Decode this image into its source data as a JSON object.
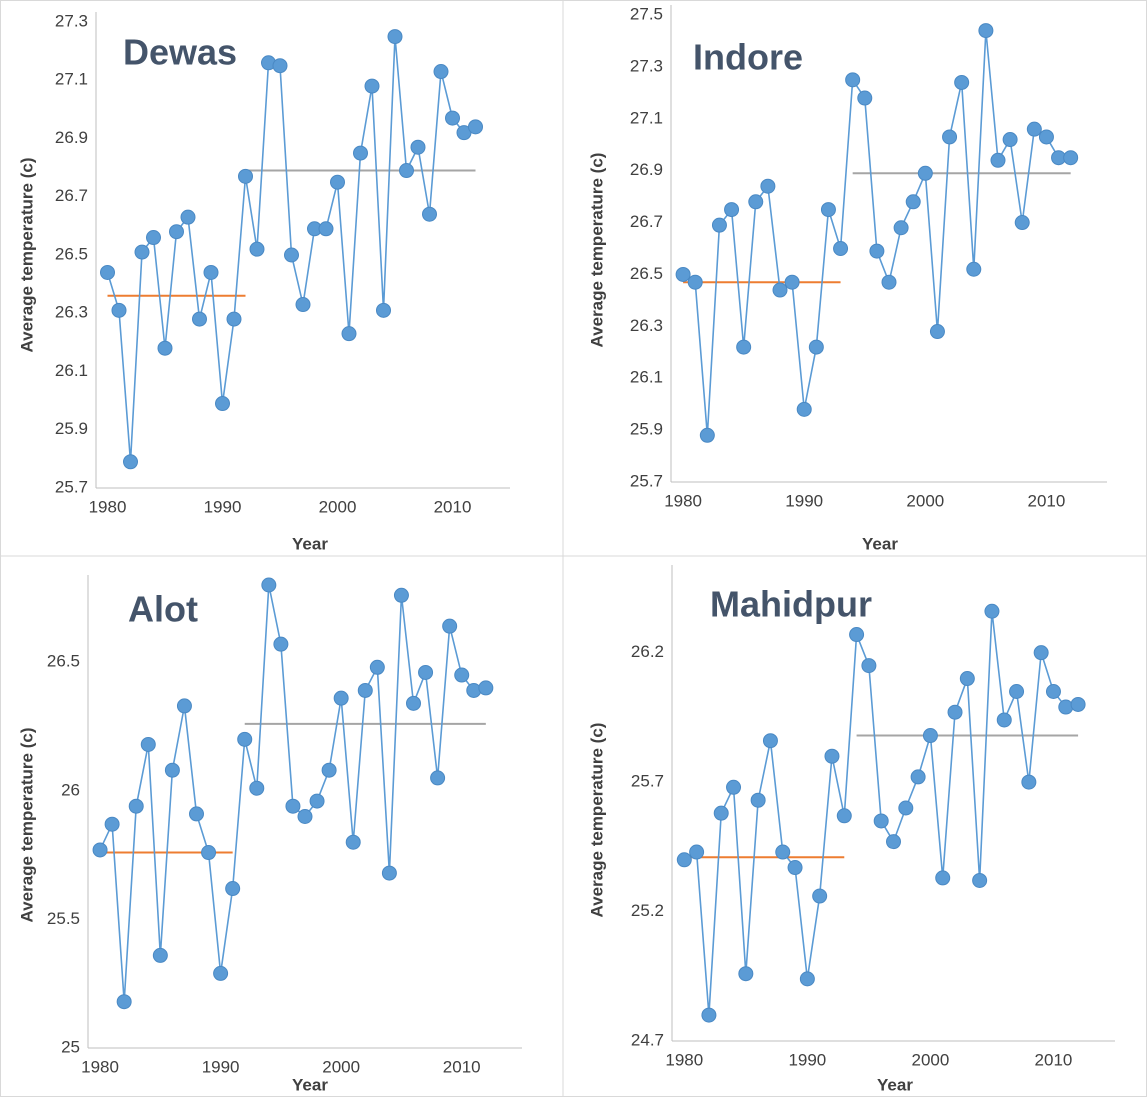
{
  "chart_data": [
    {
      "type": "line",
      "title": "Dewas",
      "xlabel": "Year",
      "ylabel": "Average temperature (c)",
      "x": [
        1980,
        1981,
        1982,
        1983,
        1984,
        1985,
        1986,
        1987,
        1988,
        1989,
        1990,
        1991,
        1992,
        1993,
        1994,
        1995,
        1996,
        1997,
        1998,
        1999,
        2000,
        2001,
        2002,
        2003,
        2004,
        2005,
        2006,
        2007,
        2008,
        2009,
        2010,
        2011,
        2012
      ],
      "series": [
        {
          "color": "#5b9bd5",
          "values": [
            26.44,
            26.31,
            25.79,
            26.51,
            26.56,
            26.18,
            26.58,
            26.63,
            26.28,
            26.44,
            25.99,
            26.28,
            26.77,
            26.52,
            27.16,
            27.15,
            26.5,
            26.33,
            26.59,
            26.59,
            26.75,
            26.23,
            26.85,
            27.08,
            26.31,
            27.25,
            26.79,
            26.87,
            26.64,
            27.13,
            26.97,
            26.92,
            26.94
          ]
        }
      ],
      "mean_lines": [
        {
          "value": 26.36,
          "x": [
            1980,
            1992
          ],
          "color": "#ed7d31"
        },
        {
          "value": 26.79,
          "x": [
            1992,
            2012
          ],
          "color": "#a5a5a5"
        }
      ],
      "xlim": [
        1979,
        2015
      ],
      "ylim": [
        25.7,
        27.3
      ],
      "xticks": [
        1980,
        1990,
        2000,
        2010
      ],
      "yticks": [
        25.7,
        25.9,
        26.1,
        26.3,
        26.5,
        26.7,
        26.9,
        27.1,
        27.3
      ]
    },
    {
      "type": "line",
      "title": "Indore",
      "xlabel": "Year",
      "ylabel": "Average temperature (c)",
      "x": [
        1980,
        1981,
        1982,
        1983,
        1984,
        1985,
        1986,
        1987,
        1988,
        1989,
        1990,
        1991,
        1992,
        1993,
        1994,
        1995,
        1996,
        1997,
        1998,
        1999,
        2000,
        2001,
        2002,
        2003,
        2004,
        2005,
        2006,
        2007,
        2008,
        2009,
        2010,
        2011,
        2012
      ],
      "series": [
        {
          "color": "#5b9bd5",
          "values": [
            26.5,
            26.47,
            25.88,
            26.69,
            26.75,
            26.22,
            26.78,
            26.84,
            26.44,
            26.47,
            25.98,
            26.22,
            26.75,
            26.6,
            27.25,
            27.18,
            26.59,
            26.47,
            26.68,
            26.78,
            26.89,
            26.28,
            27.03,
            27.24,
            26.52,
            27.44,
            26.94,
            27.02,
            26.7,
            27.06,
            27.03,
            26.95,
            26.95
          ]
        }
      ],
      "mean_lines": [
        {
          "value": 26.47,
          "x": [
            1980,
            1993
          ],
          "color": "#ed7d31"
        },
        {
          "value": 26.89,
          "x": [
            1994,
            2012
          ],
          "color": "#a5a5a5"
        }
      ],
      "xlim": [
        1979,
        2015
      ],
      "ylim": [
        25.7,
        27.5
      ],
      "xticks": [
        1980,
        1990,
        2000,
        2010
      ],
      "yticks": [
        25.7,
        25.9,
        26.1,
        26.3,
        26.5,
        26.7,
        26.9,
        27.1,
        27.3,
        27.5
      ]
    },
    {
      "type": "line",
      "title": "Alot",
      "xlabel": "Year",
      "ylabel": "Average temperature (c)",
      "x": [
        1980,
        1981,
        1982,
        1983,
        1984,
        1985,
        1986,
        1987,
        1988,
        1989,
        1990,
        1991,
        1992,
        1993,
        1994,
        1995,
        1996,
        1997,
        1998,
        1999,
        2000,
        2001,
        2002,
        2003,
        2004,
        2005,
        2006,
        2007,
        2008,
        2009,
        2010,
        2011,
        2012
      ],
      "series": [
        {
          "color": "#5b9bd5",
          "values": [
            25.77,
            25.87,
            25.18,
            25.94,
            26.18,
            25.36,
            26.08,
            26.33,
            25.91,
            25.76,
            25.29,
            25.62,
            26.2,
            26.01,
            26.8,
            26.57,
            25.94,
            25.9,
            25.96,
            26.08,
            26.36,
            25.8,
            26.39,
            26.48,
            25.68,
            26.76,
            26.34,
            26.46,
            26.05,
            26.64,
            26.45,
            26.39,
            26.4
          ]
        }
      ],
      "mean_lines": [
        {
          "value": 25.76,
          "x": [
            1980,
            1991
          ],
          "color": "#ed7d31"
        },
        {
          "value": 26.26,
          "x": [
            1992,
            2012
          ],
          "color": "#a5a5a5"
        }
      ],
      "xlim": [
        1979,
        2015
      ],
      "ylim": [
        25,
        26.8
      ],
      "xticks": [
        1980,
        1990,
        2000,
        2010
      ],
      "yticks": [
        25,
        25.5,
        26,
        26.5
      ]
    },
    {
      "type": "line",
      "title": "Mahidpur",
      "xlabel": "Year",
      "ylabel": "Average temperature (c)",
      "x": [
        1980,
        1981,
        1982,
        1983,
        1984,
        1985,
        1986,
        1987,
        1988,
        1989,
        1990,
        1991,
        1992,
        1993,
        1994,
        1995,
        1996,
        1997,
        1998,
        1999,
        2000,
        2001,
        2002,
        2003,
        2004,
        2005,
        2006,
        2007,
        2008,
        2009,
        2010,
        2011,
        2012
      ],
      "series": [
        {
          "color": "#5b9bd5",
          "values": [
            25.4,
            25.43,
            24.8,
            25.58,
            25.68,
            24.96,
            25.63,
            25.86,
            25.43,
            25.37,
            24.94,
            25.26,
            25.8,
            25.57,
            26.27,
            26.15,
            25.55,
            25.47,
            25.6,
            25.72,
            25.88,
            25.33,
            25.97,
            26.1,
            25.32,
            26.36,
            25.94,
            26.05,
            25.7,
            26.2,
            26.05,
            25.99,
            26
          ]
        }
      ],
      "mean_lines": [
        {
          "value": 25.41,
          "x": [
            1980,
            1993
          ],
          "color": "#ed7d31"
        },
        {
          "value": 25.88,
          "x": [
            1994,
            2012
          ],
          "color": "#a5a5a5"
        }
      ],
      "xlim": [
        1979,
        2015
      ],
      "ylim": [
        24.7,
        26.5
      ],
      "xticks": [
        1980,
        1990,
        2000,
        2010
      ],
      "yticks": [
        24.7,
        25.2,
        25.7,
        26.2
      ]
    }
  ]
}
